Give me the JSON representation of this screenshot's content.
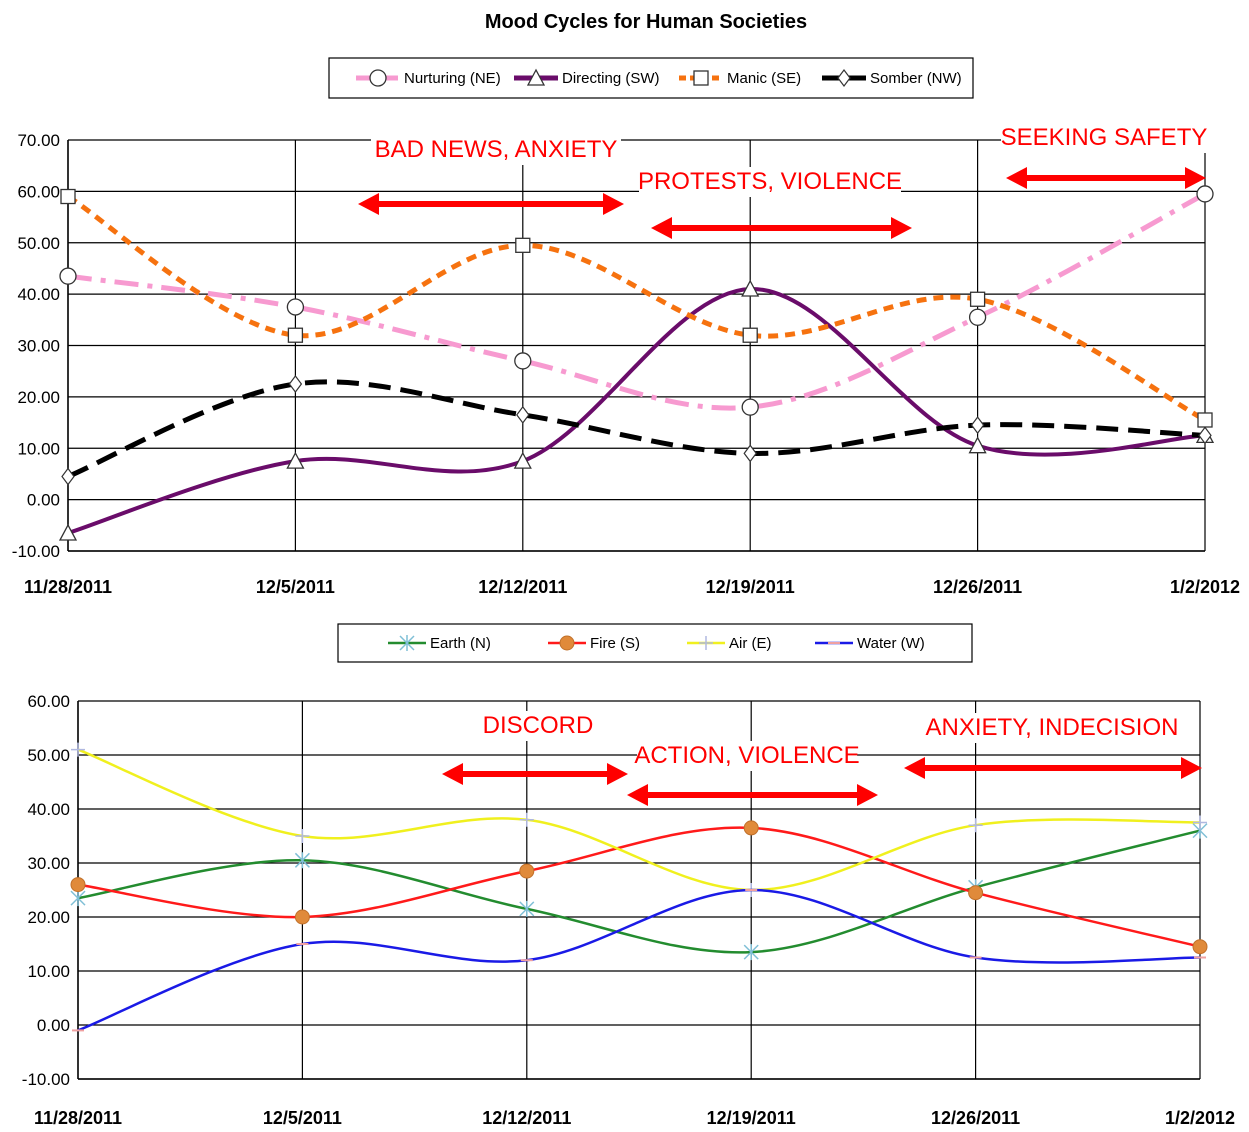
{
  "title": "Mood Cycles for Human Societies",
  "chart_data": [
    {
      "type": "line",
      "categories": [
        "11/28/2011",
        "12/5/2011",
        "12/12/2011",
        "12/19/2011",
        "12/26/2011",
        "1/2/2012"
      ],
      "ylim": [
        -10,
        70
      ],
      "yticks": [
        "70.00",
        "60.00",
        "50.00",
        "40.00",
        "30.00",
        "20.00",
        "10.00",
        "0.00",
        "-10.00"
      ],
      "grid": true,
      "legend_position": "top",
      "series": [
        {
          "name": "Nurturing (NE)",
          "values": [
            43.5,
            37.5,
            27,
            18,
            35.5,
            59.5
          ],
          "color": "#f79ad0",
          "marker": "circle",
          "dash": "dashdot"
        },
        {
          "name": "Directing (SW)",
          "values": [
            -6.5,
            7.5,
            7.5,
            41,
            10.5,
            12.5
          ],
          "color": "#6a0c6a",
          "marker": "triangle",
          "dash": "solid"
        },
        {
          "name": "Manic (SE)",
          "values": [
            59,
            32,
            49.5,
            32,
            39,
            15.5
          ],
          "color": "#f6720f",
          "marker": "square",
          "dash": "dash"
        },
        {
          "name": "Somber (NW)",
          "values": [
            4.5,
            22.5,
            16.5,
            9,
            14.5,
            12.5
          ],
          "color": "#000000",
          "marker": "diamond",
          "dash": "longdash"
        }
      ],
      "annotations": [
        {
          "text": "BAD NEWS, ANXIETY",
          "color": "#ff0000"
        },
        {
          "text": "PROTESTS, VIOLENCE",
          "color": "#ff0000"
        },
        {
          "text": "SEEKING SAFETY",
          "color": "#ff0000"
        }
      ]
    },
    {
      "type": "line",
      "categories": [
        "11/28/2011",
        "12/5/2011",
        "12/12/2011",
        "12/19/2011",
        "12/26/2011",
        "1/2/2012"
      ],
      "ylim": [
        -10,
        60
      ],
      "yticks": [
        "60.00",
        "50.00",
        "40.00",
        "30.00",
        "20.00",
        "10.00",
        "0.00",
        "-10.00"
      ],
      "grid": true,
      "legend_position": "top",
      "series": [
        {
          "name": "Earth (N)",
          "values": [
            23.5,
            30.5,
            21.5,
            13.5,
            25.5,
            36
          ],
          "color": "#238c2f",
          "marker": "asterisk"
        },
        {
          "name": "Fire (S)",
          "values": [
            26,
            20,
            28.5,
            36.5,
            24.5,
            14.5
          ],
          "color": "#ff1a1a",
          "marker": "dot"
        },
        {
          "name": "Air (E)",
          "values": [
            51,
            35,
            38,
            25,
            37,
            37.5
          ],
          "color": "#f0f01e",
          "marker": "plus"
        },
        {
          "name": "Water (W)",
          "values": [
            -1,
            15,
            12,
            25,
            12.5,
            12.5
          ],
          "color": "#1a1ae6",
          "marker": "dash"
        }
      ],
      "annotations": [
        {
          "text": "DISCORD",
          "color": "#ff0000"
        },
        {
          "text": "ACTION, VIOLENCE",
          "color": "#ff0000"
        },
        {
          "text": "ANXIETY, INDECISION",
          "color": "#ff0000"
        }
      ]
    }
  ]
}
